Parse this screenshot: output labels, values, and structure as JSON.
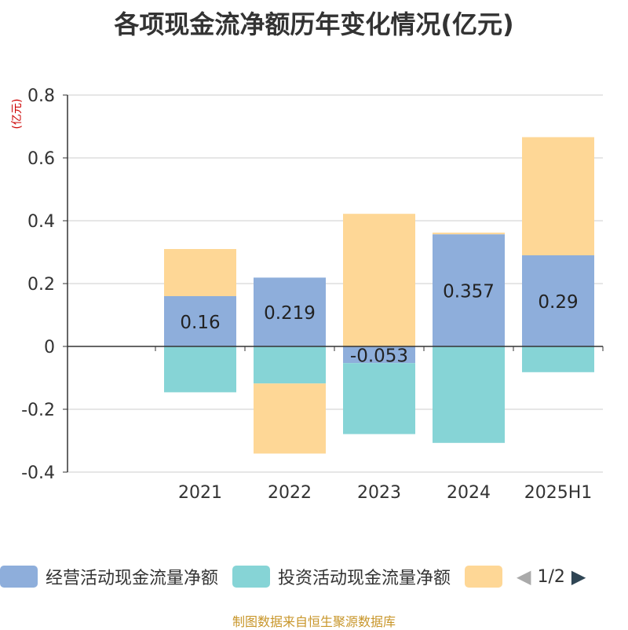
{
  "title": "各项现金流净额历年变化情况(亿元)",
  "source": "制图数据来自恒生聚源数据库",
  "legend_pager": "1/2",
  "chart_data": {
    "type": "bar",
    "stacked": true,
    "title": "各项现金流净额历年变化情况(亿元)",
    "ylabel": "(亿元)",
    "ylim": [
      -0.4,
      0.8
    ],
    "yticks": [
      -0.4,
      -0.2,
      0,
      0.2,
      0.4,
      0.6,
      0.8
    ],
    "ytick_labels": [
      "-0.4",
      "-0.2",
      "0",
      "0.2",
      "0.4",
      "0.6",
      "0.8"
    ],
    "categories": [
      "2021",
      "2022",
      "2023",
      "2024",
      "2025H1"
    ],
    "grid": true,
    "legend_position": "bottom",
    "series": [
      {
        "name": "经营活动现金流量净额",
        "color": "#8eaedb",
        "values": [
          0.16,
          0.219,
          -0.053,
          0.357,
          0.29
        ],
        "labels": [
          "0.16",
          "0.219",
          "-0.053",
          "0.357",
          "0.29"
        ]
      },
      {
        "name": "投资活动现金流量净额",
        "color": "#86d4d6",
        "values": [
          -0.146,
          -0.118,
          -0.226,
          -0.307,
          -0.082
        ]
      },
      {
        "name": "",
        "color": "#fed796",
        "values": [
          0.15,
          -0.223,
          0.422,
          0.005,
          0.376
        ]
      }
    ]
  }
}
